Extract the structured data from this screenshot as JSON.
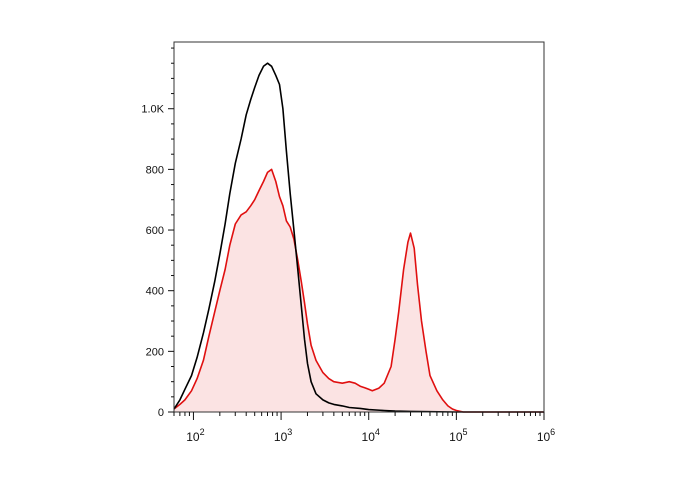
{
  "chart_data": {
    "type": "area",
    "title": "",
    "xlabel": "",
    "ylabel": "",
    "x_scale": "log",
    "xlim": [
      60,
      1000000
    ],
    "ylim": [
      0,
      1220
    ],
    "grid": false,
    "legend": "none",
    "x_ticks": [
      {
        "value": 100,
        "base": "10",
        "exp": "2"
      },
      {
        "value": 1000,
        "base": "10",
        "exp": "3"
      },
      {
        "value": 10000,
        "base": "10",
        "exp": "4"
      },
      {
        "value": 100000,
        "base": "10",
        "exp": "5"
      },
      {
        "value": 1000000,
        "base": "10",
        "exp": "6"
      }
    ],
    "y_ticks": [
      {
        "value": 0,
        "label": "0"
      },
      {
        "value": 200,
        "label": "200"
      },
      {
        "value": 400,
        "label": "400"
      },
      {
        "value": 600,
        "label": "600"
      },
      {
        "value": 800,
        "label": "800"
      },
      {
        "value": 1000,
        "label": "1.0K"
      }
    ],
    "series": [
      {
        "color": "#000000",
        "filled": false,
        "points": [
          [
            60,
            10
          ],
          [
            70,
            40
          ],
          [
            80,
            75
          ],
          [
            95,
            120
          ],
          [
            110,
            180
          ],
          [
            130,
            260
          ],
          [
            150,
            340
          ],
          [
            175,
            430
          ],
          [
            200,
            520
          ],
          [
            230,
            620
          ],
          [
            260,
            720
          ],
          [
            300,
            820
          ],
          [
            350,
            900
          ],
          [
            400,
            980
          ],
          [
            450,
            1030
          ],
          [
            500,
            1070
          ],
          [
            560,
            1110
          ],
          [
            630,
            1140
          ],
          [
            700,
            1150
          ],
          [
            780,
            1140
          ],
          [
            870,
            1110
          ],
          [
            960,
            1080
          ],
          [
            1050,
            1000
          ],
          [
            1150,
            860
          ],
          [
            1270,
            720
          ],
          [
            1400,
            600
          ],
          [
            1550,
            470
          ],
          [
            1700,
            350
          ],
          [
            1850,
            240
          ],
          [
            2000,
            160
          ],
          [
            2200,
            100
          ],
          [
            2500,
            60
          ],
          [
            3000,
            40
          ],
          [
            3500,
            30
          ],
          [
            4000,
            25
          ],
          [
            5000,
            20
          ],
          [
            6000,
            15
          ],
          [
            8000,
            12
          ],
          [
            10000,
            8
          ],
          [
            15000,
            5
          ],
          [
            20000,
            3
          ],
          [
            30000,
            2
          ],
          [
            50000,
            1
          ],
          [
            100000,
            0
          ],
          [
            1000000,
            0
          ]
        ]
      },
      {
        "color": "#e01010",
        "fill": "#fbe3e3",
        "filled": true,
        "points": [
          [
            60,
            10
          ],
          [
            70,
            25
          ],
          [
            80,
            40
          ],
          [
            95,
            70
          ],
          [
            110,
            110
          ],
          [
            130,
            170
          ],
          [
            150,
            250
          ],
          [
            175,
            330
          ],
          [
            200,
            400
          ],
          [
            230,
            470
          ],
          [
            260,
            550
          ],
          [
            300,
            620
          ],
          [
            350,
            650
          ],
          [
            400,
            660
          ],
          [
            450,
            680
          ],
          [
            500,
            700
          ],
          [
            560,
            730
          ],
          [
            630,
            760
          ],
          [
            700,
            790
          ],
          [
            780,
            800
          ],
          [
            870,
            760
          ],
          [
            960,
            710
          ],
          [
            1050,
            680
          ],
          [
            1150,
            630
          ],
          [
            1270,
            610
          ],
          [
            1400,
            570
          ],
          [
            1550,
            500
          ],
          [
            1700,
            430
          ],
          [
            1850,
            360
          ],
          [
            2000,
            290
          ],
          [
            2200,
            220
          ],
          [
            2500,
            170
          ],
          [
            3000,
            130
          ],
          [
            3500,
            110
          ],
          [
            4000,
            100
          ],
          [
            5000,
            95
          ],
          [
            6000,
            100
          ],
          [
            7000,
            95
          ],
          [
            8000,
            85
          ],
          [
            9000,
            80
          ],
          [
            10000,
            75
          ],
          [
            11000,
            70
          ],
          [
            13000,
            78
          ],
          [
            15000,
            95
          ],
          [
            18000,
            150
          ],
          [
            20000,
            240
          ],
          [
            22000,
            330
          ],
          [
            25000,
            470
          ],
          [
            28000,
            560
          ],
          [
            30000,
            590
          ],
          [
            33000,
            540
          ],
          [
            36000,
            420
          ],
          [
            40000,
            300
          ],
          [
            45000,
            200
          ],
          [
            50000,
            120
          ],
          [
            60000,
            70
          ],
          [
            70000,
            40
          ],
          [
            80000,
            20
          ],
          [
            90000,
            10
          ],
          [
            100000,
            5
          ],
          [
            120000,
            0
          ],
          [
            1000000,
            0
          ]
        ]
      }
    ]
  }
}
